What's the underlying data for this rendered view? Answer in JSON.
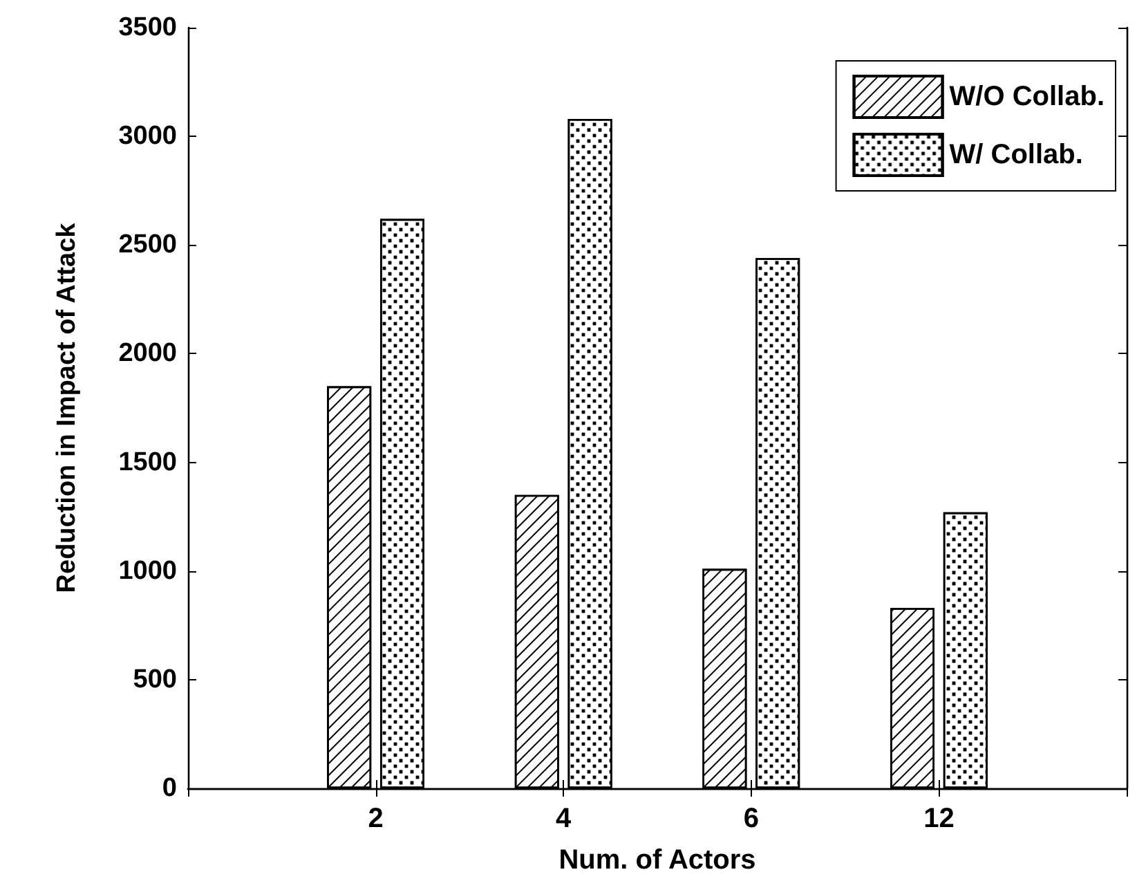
{
  "chart_data": {
    "type": "bar",
    "xlabel": "Num. of Actors",
    "ylabel": "Reduction in Impact of Attack",
    "categories": [
      "2",
      "4",
      "6",
      "12"
    ],
    "series": [
      {
        "name": "W/O Collab.",
        "color": "#ffffff",
        "values": [
          1850,
          1350,
          1010,
          830
        ]
      },
      {
        "name": "W/ Collab.",
        "color": "#ffffff",
        "values": [
          2620,
          3080,
          2440,
          1270
        ]
      }
    ],
    "ylim": [
      0,
      3500
    ],
    "yticks": [
      0,
      500,
      1000,
      1500,
      2000,
      2500,
      3000,
      3500
    ],
    "grid": false,
    "legend": "top right"
  }
}
